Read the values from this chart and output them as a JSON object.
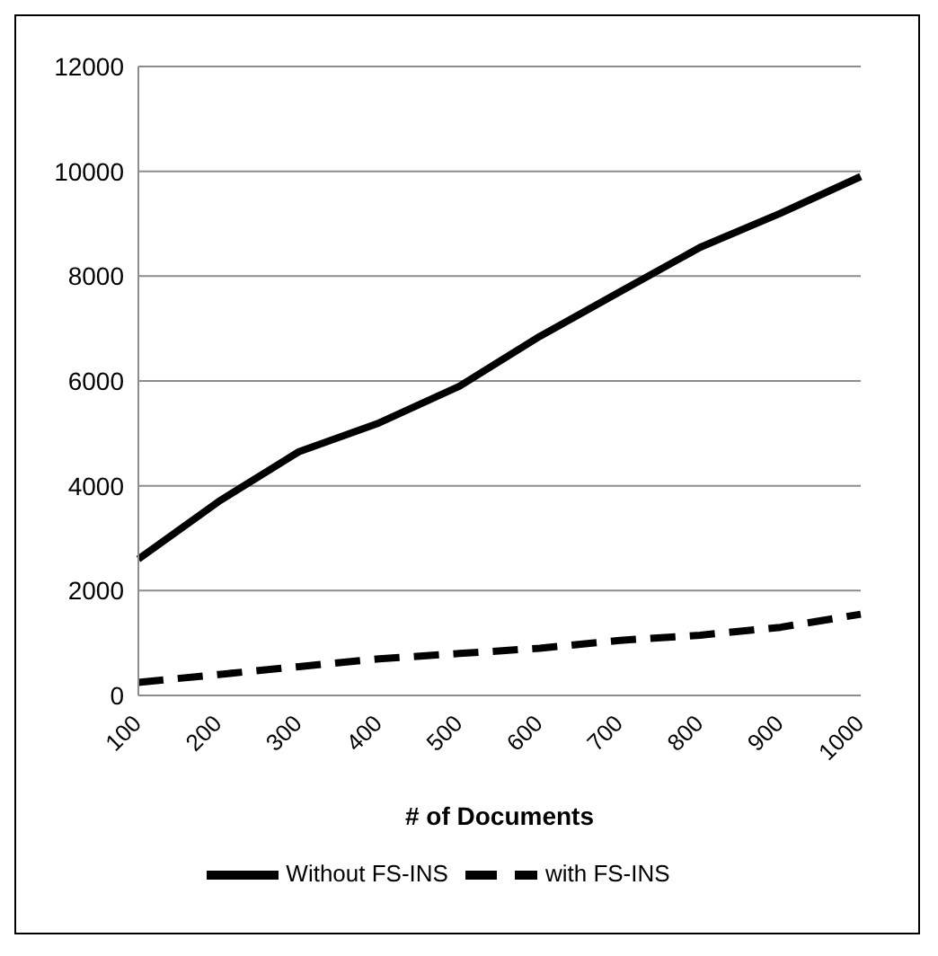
{
  "chart_data": {
    "type": "line",
    "xlabel": "# of Documents",
    "categories": [
      "100",
      "200",
      "300",
      "400",
      "500",
      "600",
      "700",
      "800",
      "900",
      "1000"
    ],
    "series": [
      {
        "name": "Without FS-INS",
        "color": "#000000",
        "line_style": "solid",
        "values": [
          2600,
          3700,
          4650,
          5200,
          5900,
          6850,
          7700,
          8550,
          9200,
          9900
        ]
      },
      {
        "name": "with FS-INS",
        "color": "#000000",
        "line_style": "dashed",
        "values": [
          250,
          400,
          550,
          700,
          800,
          900,
          1050,
          1150,
          1300,
          1550
        ]
      }
    ],
    "ylim": [
      0,
      12000
    ],
    "yticks": [
      0,
      2000,
      4000,
      6000,
      8000,
      10000,
      12000
    ],
    "grid": "y",
    "legend": "bottom",
    "marker": "none"
  }
}
